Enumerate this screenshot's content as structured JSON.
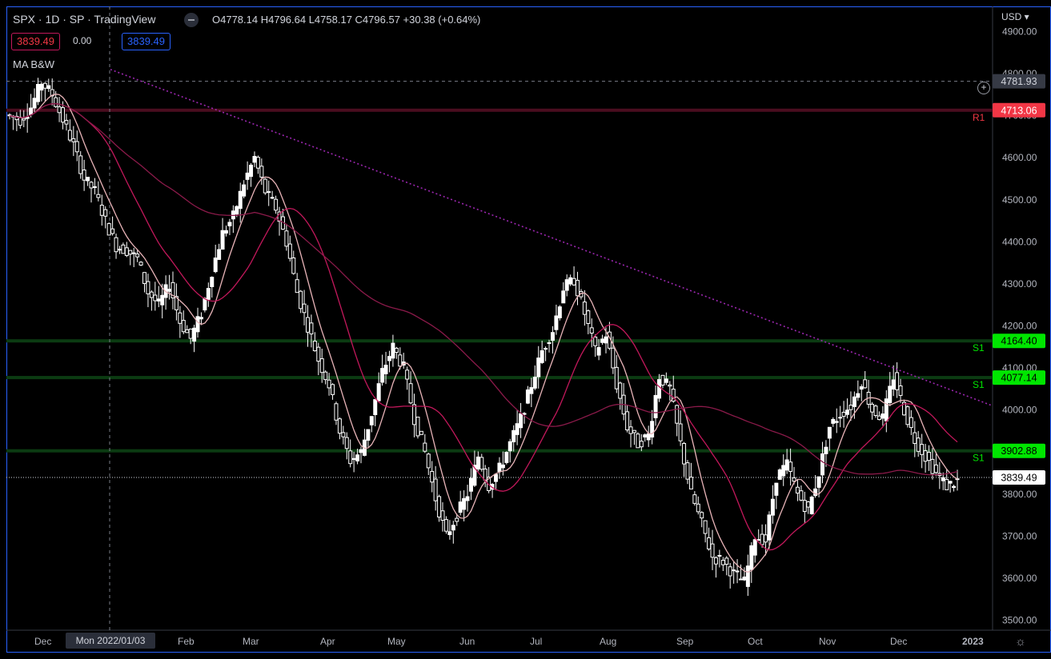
{
  "header": {
    "title": "SPX · 1D · SP · TradingView",
    "ohlc": "O4778.14 H4796.64 L4758.17 C4796.57 +30.38 (+0.64%)",
    "bid": "3839.49",
    "spread": "0.00",
    "ask": "3839.49",
    "indicator": "MA B&W",
    "currency": "USD"
  },
  "chart_data": {
    "type": "line",
    "title": "SPX · 1D · SP",
    "xlabel": "",
    "ylabel": "",
    "y_ticks": [
      4900,
      4800,
      4700,
      4600,
      4500,
      4400,
      4300,
      4200,
      4100,
      4000,
      3900,
      3800,
      3700,
      3600,
      3500
    ],
    "y_tick_labels": [
      "4900.00",
      "4800.00",
      "4700.00",
      "4600.00",
      "4500.00",
      "4400.00",
      "4300.00",
      "4200.00",
      "4100.00",
      "4000.00",
      "3900.00",
      "3800.00",
      "3700.00",
      "3600.00",
      "3500.00"
    ],
    "x_tick_labels": [
      "Dec",
      "Feb",
      "Mar",
      "Apr",
      "May",
      "Jun",
      "Jul",
      "Aug",
      "Sep",
      "Oct",
      "Nov",
      "Dec",
      "2023"
    ],
    "crosshair_date_label": "Mon 2022/01/03",
    "crosshair_price_label": "4781.93",
    "last_price": "3839.49",
    "series": [
      {
        "values": [
          4700,
          4690,
          4720,
          4780,
          4750,
          4690,
          4630,
          4550,
          4520,
          4450,
          4390,
          4380,
          4360,
          4280,
          4250,
          4300,
          4210,
          4170,
          4230,
          4330,
          4420,
          4460,
          4540,
          4600,
          4520,
          4480,
          4400,
          4280,
          4200,
          4120,
          4060,
          3950,
          3880,
          3900,
          3990,
          4090,
          4150,
          4100,
          3980,
          3900,
          3790,
          3700,
          3750,
          3800,
          3890,
          3820,
          3860,
          3920,
          3980,
          4060,
          4140,
          4190,
          4290,
          4310,
          4230,
          4140,
          4180,
          4060,
          3960,
          3920,
          3940,
          4080,
          4050,
          3920,
          3800,
          3730,
          3650,
          3640,
          3610,
          3590,
          3700,
          3690,
          3840,
          3870,
          3800,
          3760,
          3850,
          3960,
          3990,
          4010,
          4070,
          4000,
          3980,
          4080,
          4000,
          3930,
          3890,
          3850,
          3820,
          3830
        ]
      }
    ],
    "moving_averages": [
      {
        "name": "MA fast",
        "color": "#e8b4b8"
      },
      {
        "name": "MA mid",
        "color": "#c2185b"
      },
      {
        "name": "MA slow",
        "color": "#8b1a4a"
      }
    ],
    "levels": [
      {
        "label": "R1",
        "value": 4713.06,
        "value_label": "4713.06",
        "color": "#f23645"
      },
      {
        "label": "S1",
        "value": 4164.4,
        "value_label": "4164.40",
        "color": "#00e600"
      },
      {
        "label": "S1",
        "value": 4077.14,
        "value_label": "4077.14",
        "color": "#00e600"
      },
      {
        "label": "S1",
        "value": 3902.88,
        "value_label": "3902.88",
        "color": "#00e600"
      }
    ],
    "trendline": {
      "from": [
        4810,
        "2022-01-03"
      ],
      "to": [
        4010,
        "2023-01"
      ],
      "style": "dotted",
      "color": "#9c27b0"
    },
    "ylim": [
      3480,
      4960
    ],
    "grid": false
  },
  "colors": {
    "background": "#000000",
    "candle": "#ffffff",
    "text": "#d1d4dc"
  },
  "icons": {
    "settings": "gear-icon",
    "add_alert": "plus-circle-icon"
  }
}
